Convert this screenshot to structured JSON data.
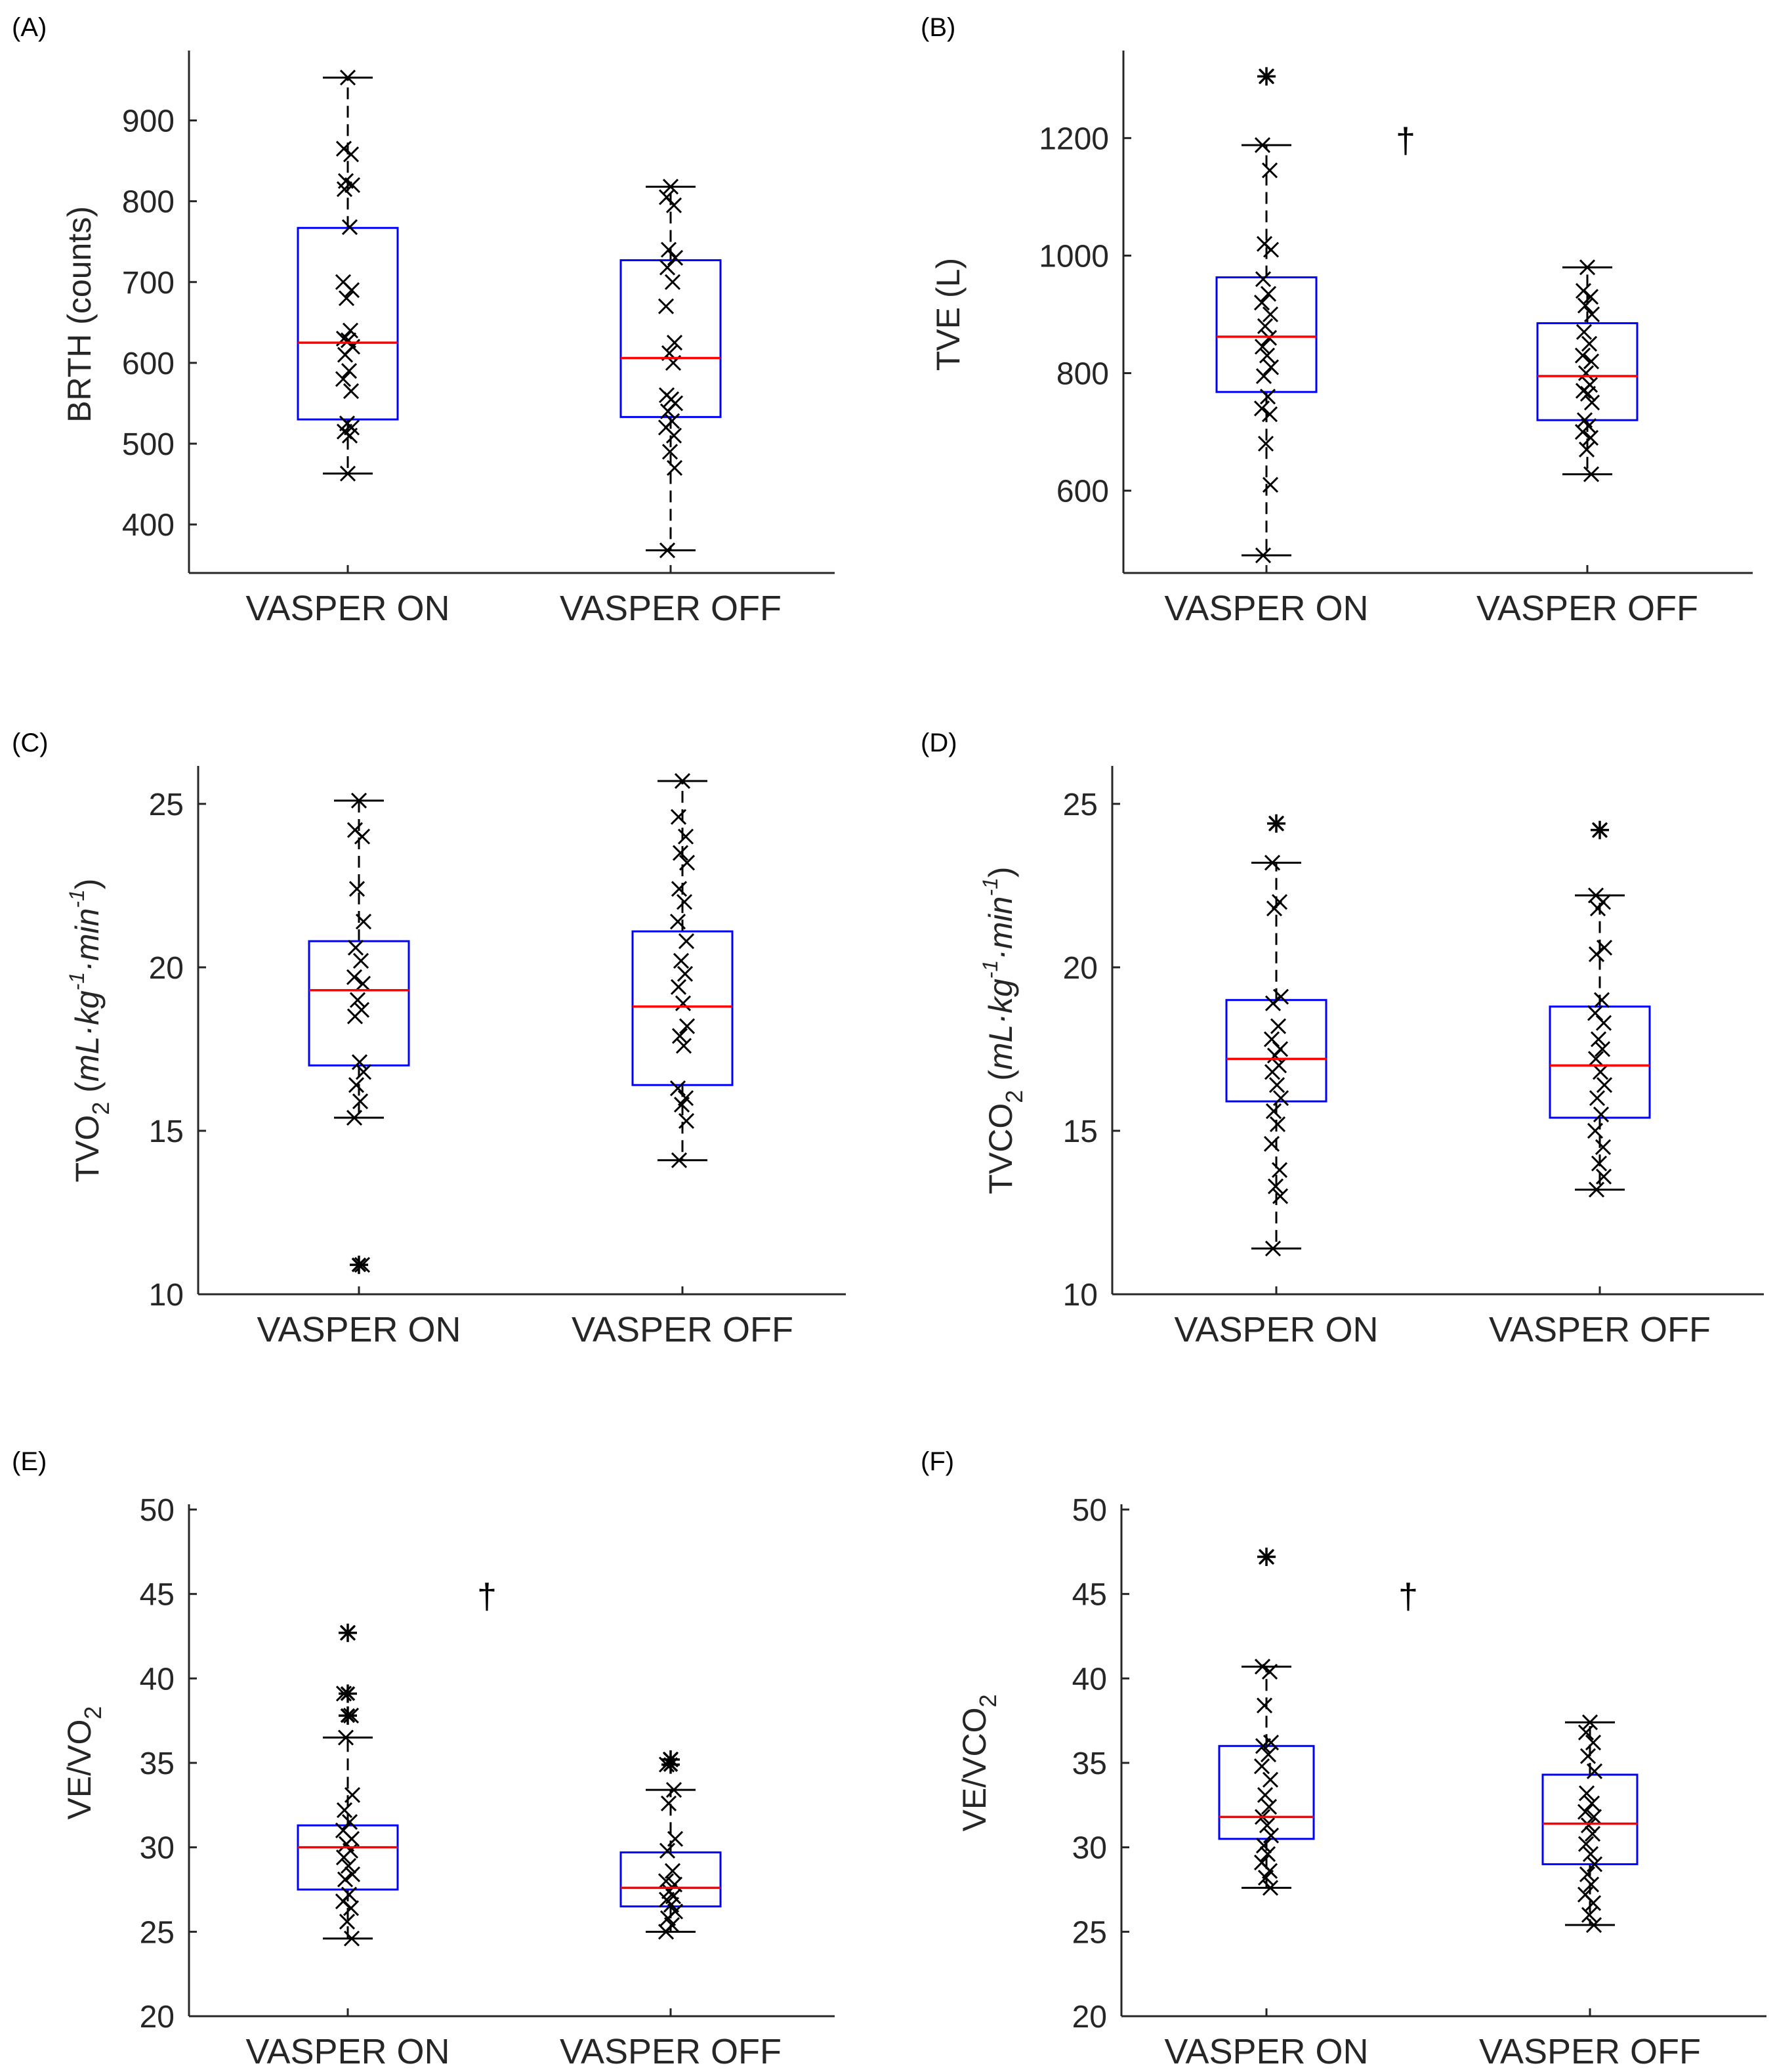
{
  "chart_data": [
    {
      "panel": "(A)",
      "type": "box",
      "ylabel": "BRTH (counts)",
      "ylim": [
        340,
        980
      ],
      "yticks": [
        400,
        500,
        600,
        700,
        800,
        900
      ],
      "categories": [
        "VASPER ON",
        "VASPER OFF"
      ],
      "annotation": "",
      "boxes": [
        {
          "category": "VASPER ON",
          "q1": 530,
          "median": 625,
          "q3": 767,
          "whisker_low": 463,
          "whisker_high": 953,
          "outliers": [],
          "points": [
            953,
            865,
            858,
            825,
            820,
            815,
            768,
            700,
            690,
            680,
            640,
            630,
            628,
            620,
            610,
            590,
            580,
            565,
            525,
            520,
            515,
            510,
            463
          ]
        },
        {
          "category": "VASPER OFF",
          "q1": 533,
          "median": 606,
          "q3": 727,
          "whisker_low": 368,
          "whisker_high": 818,
          "outliers": [],
          "points": [
            818,
            805,
            795,
            740,
            730,
            718,
            700,
            670,
            625,
            612,
            600,
            560,
            555,
            550,
            540,
            528,
            520,
            510,
            490,
            470,
            368
          ]
        }
      ]
    },
    {
      "panel": "(B)",
      "type": "box",
      "ylabel": "TVE (L)",
      "ylim": [
        460,
        1340
      ],
      "yticks": [
        600,
        800,
        1000,
        1200
      ],
      "categories": [
        "VASPER ON",
        "VASPER OFF"
      ],
      "annotation": "†",
      "boxes": [
        {
          "category": "VASPER ON",
          "q1": 768,
          "median": 862,
          "q3": 963,
          "whisker_low": 490,
          "whisker_high": 1188,
          "outliers": [
            1305
          ],
          "points": [
            1305,
            1188,
            1145,
            1020,
            1010,
            960,
            935,
            920,
            900,
            880,
            860,
            845,
            830,
            810,
            795,
            760,
            740,
            730,
            680,
            610,
            490
          ]
        },
        {
          "category": "VASPER OFF",
          "q1": 720,
          "median": 795,
          "q3": 885,
          "whisker_low": 628,
          "whisker_high": 980,
          "outliers": [],
          "points": [
            980,
            940,
            930,
            915,
            900,
            870,
            850,
            830,
            820,
            800,
            780,
            770,
            765,
            750,
            720,
            710,
            700,
            690,
            670,
            628
          ]
        }
      ]
    },
    {
      "panel": "(C)",
      "type": "box",
      "ylabel": "TVO2 (mL·kg-1·min-1)",
      "ylim": [
        10,
        26
      ],
      "yticks": [
        10,
        15,
        20,
        25
      ],
      "categories": [
        "VASPER ON",
        "VASPER OFF"
      ],
      "annotation": "",
      "boxes": [
        {
          "category": "VASPER ON",
          "q1": 17.0,
          "median": 19.3,
          "q3": 20.8,
          "whisker_low": 15.4,
          "whisker_high": 25.1,
          "outliers": [
            10.9
          ],
          "points": [
            25.1,
            24.2,
            24.0,
            22.4,
            21.4,
            20.6,
            20.2,
            19.7,
            19.5,
            19.0,
            18.7,
            18.5,
            17.1,
            16.8,
            16.4,
            15.9,
            15.4,
            10.9
          ]
        },
        {
          "category": "VASPER OFF",
          "q1": 16.4,
          "median": 18.8,
          "q3": 21.1,
          "whisker_low": 14.1,
          "whisker_high": 25.7,
          "outliers": [],
          "points": [
            25.7,
            24.6,
            24.0,
            23.5,
            23.2,
            22.4,
            22.0,
            21.4,
            20.8,
            20.2,
            19.8,
            19.4,
            18.9,
            18.2,
            17.9,
            17.6,
            16.3,
            16.0,
            15.8,
            15.3,
            14.1
          ]
        }
      ]
    },
    {
      "panel": "(D)",
      "type": "box",
      "ylabel": "TVCO2 (mL·kg-1·min-1)",
      "ylim": [
        10,
        26
      ],
      "yticks": [
        10,
        15,
        20,
        25
      ],
      "categories": [
        "VASPER ON",
        "VASPER OFF"
      ],
      "annotation": "",
      "boxes": [
        {
          "category": "VASPER ON",
          "q1": 15.9,
          "median": 17.2,
          "q3": 19.0,
          "whisker_low": 11.4,
          "whisker_high": 23.2,
          "outliers": [
            24.4
          ],
          "points": [
            24.4,
            23.2,
            22.0,
            21.8,
            19.1,
            18.9,
            18.2,
            17.8,
            17.5,
            17.3,
            17.0,
            16.8,
            16.4,
            16.0,
            15.6,
            15.2,
            14.6,
            13.8,
            13.3,
            13.0,
            11.4
          ]
        },
        {
          "category": "VASPER OFF",
          "q1": 15.4,
          "median": 17.0,
          "q3": 18.8,
          "whisker_low": 13.2,
          "whisker_high": 22.2,
          "outliers": [
            24.2
          ],
          "points": [
            24.2,
            22.2,
            22.0,
            21.8,
            20.6,
            20.4,
            19.0,
            18.6,
            18.3,
            17.8,
            17.5,
            17.2,
            16.8,
            16.4,
            16.0,
            15.5,
            15.0,
            14.5,
            14.0,
            13.6,
            13.2
          ]
        }
      ]
    },
    {
      "panel": "(E)",
      "type": "box",
      "ylabel": "VE/VO2",
      "ylim": [
        20,
        50
      ],
      "yticks": [
        20,
        25,
        30,
        35,
        40,
        45,
        50
      ],
      "categories": [
        "VASPER ON",
        "VASPER OFF"
      ],
      "annotation": "†",
      "boxes": [
        {
          "category": "VASPER ON",
          "q1": 27.5,
          "median": 30.0,
          "q3": 31.3,
          "whisker_low": 24.6,
          "whisker_high": 36.5,
          "outliers": [
            42.7,
            39.1,
            37.8
          ],
          "points": [
            42.7,
            39.1,
            37.8,
            36.5,
            33.1,
            32.2,
            31.5,
            31.0,
            30.5,
            30.2,
            29.8,
            29.4,
            28.9,
            28.4,
            28.1,
            27.2,
            26.8,
            26.4,
            25.6,
            24.6
          ]
        },
        {
          "category": "VASPER OFF",
          "q1": 26.5,
          "median": 27.6,
          "q3": 29.7,
          "whisker_low": 25.0,
          "whisker_high": 33.4,
          "outliers": [
            35.2,
            34.9
          ],
          "points": [
            35.2,
            34.9,
            33.4,
            32.6,
            30.5,
            29.8,
            28.6,
            28.0,
            27.8,
            27.4,
            27.1,
            26.9,
            26.6,
            26.2,
            25.8,
            25.4,
            25.0
          ]
        }
      ]
    },
    {
      "panel": "(F)",
      "type": "box",
      "ylabel": "VE/VCO2",
      "ylim": [
        20,
        50
      ],
      "yticks": [
        20,
        25,
        30,
        35,
        40,
        45,
        50
      ],
      "categories": [
        "VASPER ON",
        "VASPER OFF"
      ],
      "annotation": "†",
      "boxes": [
        {
          "category": "VASPER ON",
          "q1": 30.5,
          "median": 31.8,
          "q3": 36.0,
          "whisker_low": 27.6,
          "whisker_high": 40.7,
          "outliers": [
            47.2
          ],
          "points": [
            47.2,
            40.7,
            40.4,
            38.4,
            36.2,
            36.0,
            35.5,
            34.8,
            34.0,
            33.1,
            32.4,
            31.8,
            31.3,
            30.7,
            30.1,
            29.6,
            29.1,
            28.6,
            28.2,
            27.6
          ]
        },
        {
          "category": "VASPER OFF",
          "q1": 29.0,
          "median": 31.4,
          "q3": 34.3,
          "whisker_low": 25.4,
          "whisker_high": 37.4,
          "outliers": [],
          "points": [
            37.4,
            36.8,
            36.2,
            35.4,
            34.5,
            33.2,
            32.6,
            32.1,
            31.8,
            31.3,
            30.8,
            30.2,
            29.6,
            29.0,
            28.4,
            27.8,
            27.2,
            26.7,
            26.0,
            25.4
          ]
        }
      ]
    }
  ]
}
